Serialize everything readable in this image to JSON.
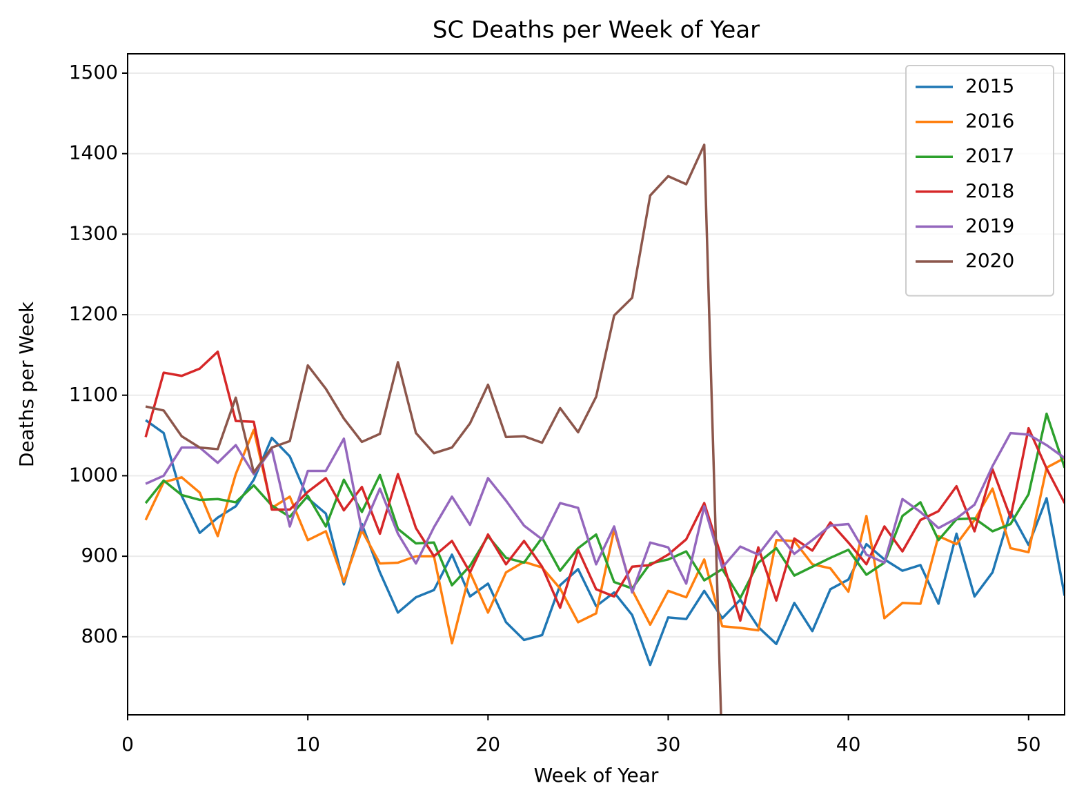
{
  "chart_data": {
    "type": "line",
    "title": "SC Deaths per Week of Year",
    "xlabel": "Week of Year",
    "ylabel": "Deaths per Week",
    "x": [
      1,
      2,
      3,
      4,
      5,
      6,
      7,
      8,
      9,
      10,
      11,
      12,
      13,
      14,
      15,
      16,
      17,
      18,
      19,
      20,
      21,
      22,
      23,
      24,
      25,
      26,
      27,
      28,
      29,
      30,
      31,
      32,
      33,
      34,
      35,
      36,
      37,
      38,
      39,
      40,
      41,
      42,
      43,
      44,
      45,
      46,
      47,
      48,
      49,
      50,
      51,
      52
    ],
    "series": [
      {
        "name": "2015",
        "color": "#1f77b4",
        "values": [
          1069,
          1053,
          975,
          929,
          948,
          962,
          995,
          1047,
          1024,
          972,
          953,
          865,
          940,
          880,
          830,
          849,
          858,
          902,
          850,
          866,
          818,
          796,
          802,
          864,
          884,
          838,
          855,
          827,
          765,
          824,
          822,
          857,
          823,
          846,
          812,
          791,
          842,
          807,
          859,
          871,
          915,
          896,
          882,
          889,
          841,
          928,
          850,
          880,
          955,
          914,
          972,
          851
        ]
      },
      {
        "name": "2016",
        "color": "#ff7f0e",
        "values": [
          945,
          992,
          998,
          979,
          925,
          1002,
          1057,
          960,
          974,
          920,
          931,
          868,
          932,
          891,
          892,
          900,
          900,
          792,
          880,
          830,
          880,
          893,
          886,
          860,
          818,
          829,
          933,
          858,
          815,
          857,
          849,
          896,
          813,
          811,
          808,
          920,
          919,
          890,
          885,
          856,
          950,
          823,
          842,
          841,
          925,
          915,
          945,
          984,
          910,
          905,
          1010,
          1022
        ]
      },
      {
        "name": "2017",
        "color": "#2ca02c",
        "values": [
          966,
          994,
          976,
          970,
          971,
          967,
          988,
          963,
          949,
          975,
          937,
          995,
          955,
          1001,
          934,
          916,
          917,
          864,
          888,
          925,
          898,
          892,
          923,
          882,
          910,
          927,
          868,
          860,
          891,
          896,
          906,
          870,
          884,
          848,
          892,
          910,
          876,
          887,
          898,
          908,
          877,
          892,
          950,
          967,
          920,
          946,
          947,
          931,
          940,
          977,
          1077,
          1010
        ]
      },
      {
        "name": "2018",
        "color": "#d62728",
        "values": [
          1048,
          1128,
          1124,
          1133,
          1154,
          1068,
          1067,
          958,
          958,
          980,
          997,
          957,
          986,
          928,
          1002,
          935,
          900,
          919,
          880,
          927,
          890,
          919,
          887,
          836,
          908,
          859,
          850,
          887,
          889,
          902,
          921,
          966,
          896,
          820,
          911,
          845,
          922,
          907,
          942,
          917,
          890,
          937,
          906,
          945,
          956,
          987,
          931,
          1008,
          948,
          1059,
          1009,
          966
        ]
      },
      {
        "name": "2019",
        "color": "#9467bd",
        "values": [
          990,
          1000,
          1035,
          1035,
          1016,
          1038,
          1002,
          1033,
          937,
          1006,
          1006,
          1046,
          932,
          984,
          928,
          891,
          936,
          974,
          939,
          997,
          969,
          938,
          921,
          966,
          960,
          890,
          937,
          855,
          917,
          911,
          866,
          962,
          886,
          912,
          902,
          931,
          903,
          920,
          938,
          940,
          902,
          892,
          971,
          955,
          935,
          947,
          964,
          1012,
          1053,
          1051,
          1038,
          1022
        ]
      },
      {
        "name": "2020",
        "color": "#8c564b",
        "values": [
          1086,
          1081,
          1049,
          1035,
          1033,
          1097,
          1004,
          1035,
          1043,
          1137,
          1108,
          1071,
          1042,
          1052,
          1141,
          1053,
          1028,
          1035,
          1065,
          1113,
          1048,
          1049,
          1041,
          1084,
          1054,
          1098,
          1199,
          1221,
          1348,
          1372,
          1362,
          1411,
          650,
          null,
          null,
          null,
          null,
          null,
          null,
          null,
          null,
          null,
          null,
          null,
          null,
          null,
          null,
          null,
          null,
          null,
          null,
          null
        ]
      }
    ],
    "xlim": [
      0,
      52
    ],
    "xticks": [
      0,
      10,
      20,
      30,
      40,
      50
    ],
    "ylim": [
      703,
      1524
    ],
    "yticks": [
      800,
      900,
      1000,
      1100,
      1200,
      1300,
      1400,
      1500
    ],
    "grid": true,
    "legend": "upper right"
  }
}
